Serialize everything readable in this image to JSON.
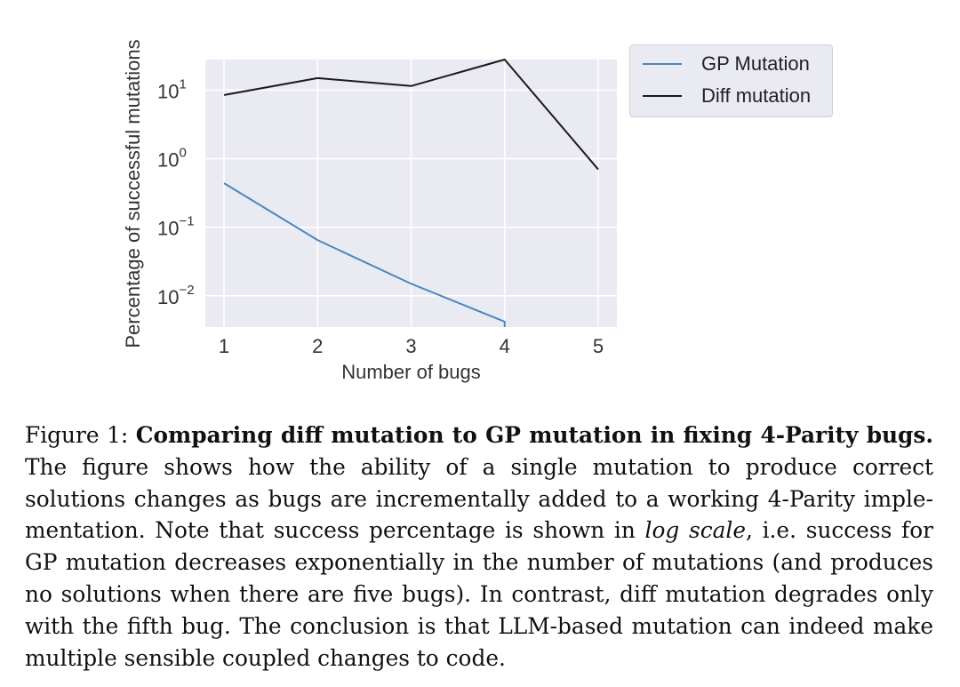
{
  "chart_data": {
    "type": "line",
    "x": [
      1,
      2,
      3,
      4,
      5
    ],
    "xlabel": "Number of bugs",
    "ylabel": "Percentage of successful mutations",
    "yscale": "log",
    "ylim": [
      0.0035,
      28
    ],
    "xticks": [
      "1",
      "2",
      "3",
      "4",
      "5"
    ],
    "yticks": [
      {
        "base": "10",
        "exp": "1",
        "value": 10
      },
      {
        "base": "10",
        "exp": "0",
        "value": 1
      },
      {
        "base": "10",
        "exp": "−1",
        "value": 0.1
      },
      {
        "base": "10",
        "exp": "−2",
        "value": 0.01
      }
    ],
    "grid": true,
    "legend_position": "outside-right",
    "series": [
      {
        "name": "GP Mutation",
        "color": "#4a86c0",
        "x": [
          1,
          2,
          3,
          4,
          4
        ],
        "values": [
          0.44,
          0.065,
          0.015,
          0.0042,
          0.0035
        ]
      },
      {
        "name": "Diff mutation",
        "color": "#1a1a1a",
        "x": [
          1,
          2,
          3,
          4,
          5
        ],
        "values": [
          8.5,
          15,
          11.5,
          28,
          0.7
        ]
      }
    ]
  },
  "caption": {
    "label": "Figure 1:",
    "title": "Comparing diff mutation to GP mutation in fixing 4-Parity bugs.",
    "text_before_italic": "The figure shows how the ability of a single mutation to produce correct solutions changes as bugs are incrementally added to a working 4-Parity imple­mentation. Note that success percentage is shown in",
    "italic": "log scale",
    "text_after_italic": ", i.e. success for GP mutation decreases exponentially in the number of mutations (and produces no solutions when there are five bugs). In contrast, diff mutation degrades only with the fifth bug. The conclusion is that LLM-based mutation can indeed make multiple sensible coupled changes to code."
  }
}
